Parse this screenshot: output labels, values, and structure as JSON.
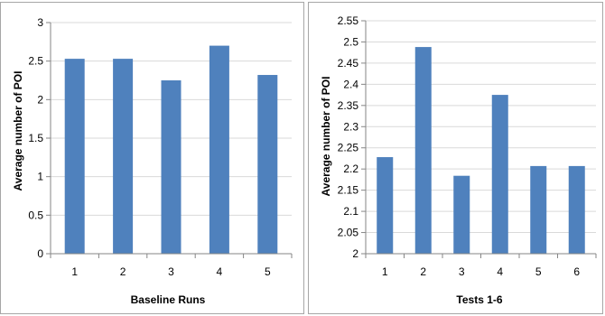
{
  "chart_data": [
    {
      "type": "bar",
      "title": "",
      "xlabel": "Baseline Runs",
      "ylabel": "Average number of POI",
      "categories": [
        "1",
        "2",
        "3",
        "4",
        "5"
      ],
      "values": [
        2.53,
        2.53,
        2.25,
        2.7,
        2.32
      ],
      "ylim": [
        0,
        3
      ],
      "yticks": [
        "0",
        "0.5",
        "1",
        "1.5",
        "2",
        "2.5",
        "3"
      ],
      "bar_color": "#4f81bd",
      "grid": true,
      "legend": "none"
    },
    {
      "type": "bar",
      "title": "",
      "xlabel": "Tests 1-6",
      "ylabel": "Average number of POI",
      "categories": [
        "1",
        "2",
        "3",
        "4",
        "5",
        "6"
      ],
      "values": [
        2.228,
        2.488,
        2.184,
        2.375,
        2.207,
        2.207
      ],
      "ylim": [
        2,
        2.55
      ],
      "yticks": [
        "2",
        "2.05",
        "2.1",
        "2.15",
        "2.2",
        "2.25",
        "2.3",
        "2.35",
        "2.4",
        "2.45",
        "2.5",
        "2.55"
      ],
      "bar_color": "#4f81bd",
      "grid": true,
      "legend": "none"
    }
  ]
}
